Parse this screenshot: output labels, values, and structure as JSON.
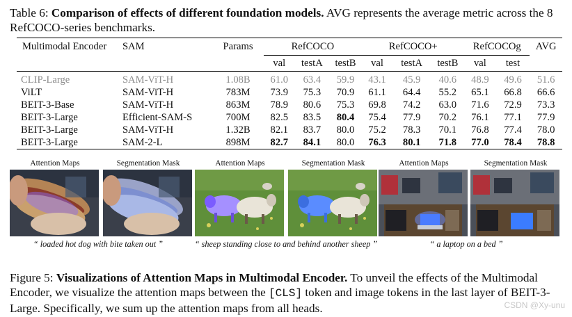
{
  "table_caption": {
    "label": "Table 6:",
    "title": "Comparison of effects of different foundation models.",
    "text": "AVG represents the average metric across the 8 RefCOCO-series benchmarks."
  },
  "table": {
    "headers": {
      "encoder": "Multimodal Encoder",
      "sam": "SAM",
      "params": "Params",
      "groups": [
        "RefCOCO",
        "RefCOCO+",
        "RefCOCOg"
      ],
      "avg": "AVG",
      "sub": [
        "val",
        "testA",
        "testB",
        "val",
        "testA",
        "testB",
        "val",
        "test"
      ]
    },
    "rows": [
      {
        "encoder": "CLIP-Large",
        "sam": "SAM-ViT-H",
        "params": "1.08B",
        "values": [
          "61.0",
          "63.4",
          "59.9",
          "43.1",
          "45.9",
          "40.6",
          "48.9",
          "49.6"
        ],
        "avg": "51.6"
      },
      {
        "encoder": "ViLT",
        "sam": "SAM-ViT-H",
        "params": "783M",
        "values": [
          "73.9",
          "75.3",
          "70.9",
          "61.1",
          "64.4",
          "55.2",
          "65.1",
          "66.8"
        ],
        "avg": "66.6"
      },
      {
        "encoder": "BEIT-3-Base",
        "sam": "SAM-ViT-H",
        "params": "863M",
        "values": [
          "78.9",
          "80.6",
          "75.3",
          "69.8",
          "74.2",
          "63.0",
          "71.6",
          "72.9"
        ],
        "avg": "73.3"
      },
      {
        "encoder": "BEIT-3-Large",
        "sam": "Efficient-SAM-S",
        "params": "700M",
        "values": [
          "82.5",
          "83.5",
          "80.4",
          "75.4",
          "77.9",
          "70.2",
          "76.1",
          "77.1"
        ],
        "avg": "77.9"
      },
      {
        "encoder": "BEIT-3-Large",
        "sam": "SAM-ViT-H",
        "params": "1.32B",
        "values": [
          "82.1",
          "83.7",
          "80.0",
          "75.2",
          "78.3",
          "70.1",
          "76.8",
          "77.4"
        ],
        "avg": "78.0"
      },
      {
        "encoder": "BEIT-3-Large",
        "sam": "SAM-2-L",
        "params": "898M",
        "values": [
          "82.7",
          "84.1",
          "80.0",
          "76.3",
          "80.1",
          "71.8",
          "77.0",
          "78.4"
        ],
        "avg": "78.8"
      }
    ]
  },
  "figure": {
    "panel_labels": [
      "Attention Maps",
      "Segmentation Mask",
      "Attention Maps",
      "Segmentation Mask",
      "Attention Maps",
      "Segmentation Mask"
    ],
    "quotes": [
      "“ loaded hot dog with bite taken out ”",
      "“ sheep standing close to and behind another sheep ”",
      "“ a laptop on a bed ”"
    ]
  },
  "figure_caption": {
    "label": "Figure 5:",
    "title": "Visualizations of Attention Maps in Multimodal Encoder.",
    "text_before": "To unveil the effects of the Multimodal Encoder, we visualize the attention maps between the",
    "token": "[CLS]",
    "text_after": "token and image tokens in the last layer of BEIT-3-Large. Specifically, we sum up the attention maps from all heads."
  },
  "watermark": "CSDN @Xy-unu",
  "colors": {
    "grey_row": "#8c8c8c",
    "attention_overlay": "#7a5cff",
    "mask_overlay": "#3b7cff"
  }
}
